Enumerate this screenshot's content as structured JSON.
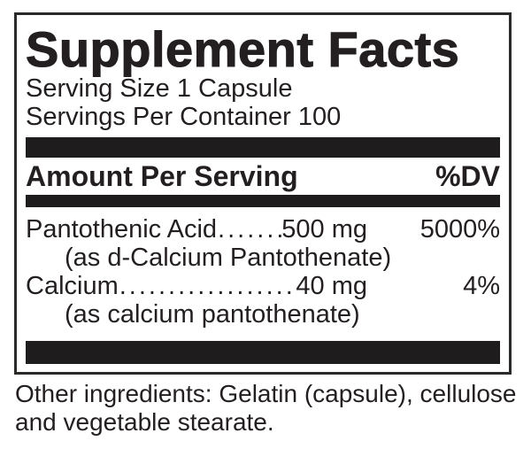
{
  "colors": {
    "background": "#ffffff",
    "text": "#231f20",
    "bar": "#1e1c1c",
    "border": "#2b2a29"
  },
  "label": {
    "title": "Supplement Facts",
    "serving_size": "Serving Size 1 Capsule",
    "servings_per_container": "Servings Per Container 100",
    "columns": {
      "amount_per_serving": "Amount Per Serving",
      "dv": "%DV"
    },
    "nutrients": [
      {
        "name": "Pantothenic Acid",
        "dots": "......................................................................",
        "amount": "500 mg",
        "dv": "5000%",
        "source": "(as d-Calcium Pantothenate)"
      },
      {
        "name": "Calcium",
        "dots": "......................................................................",
        "amount": "40 mg",
        "dv": "4%",
        "source": "(as calcium pantothenate)"
      }
    ],
    "other_ingredients": {
      "line1": "Other ingredients: Gelatin (capsule), cellulose",
      "line2": "and vegetable stearate."
    }
  }
}
